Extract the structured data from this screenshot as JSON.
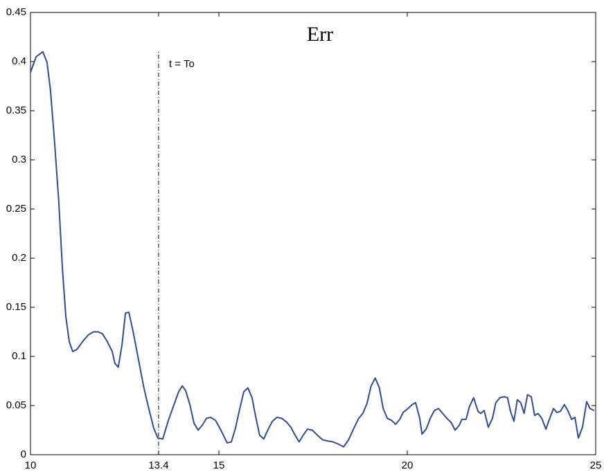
{
  "chart_data": {
    "type": "line",
    "title": "Err",
    "annotation": {
      "x": 13.4,
      "text": "t = To"
    },
    "x": [
      10,
      10.15,
      10.33,
      10.44,
      10.53,
      10.64,
      10.75,
      10.85,
      10.94,
      11.03,
      11.12,
      11.23,
      11.4,
      11.54,
      11.67,
      11.8,
      11.91,
      12.04,
      12.17,
      12.24,
      12.33,
      12.43,
      12.52,
      12.61,
      12.72,
      12.87,
      13.01,
      13.14,
      13.27,
      13.38,
      13.51,
      13.66,
      13.81,
      13.93,
      14.03,
      14.12,
      14.23,
      14.34,
      14.45,
      14.56,
      14.67,
      14.78,
      14.91,
      15.04,
      15.13,
      15.22,
      15.33,
      15.44,
      15.55,
      15.66,
      15.77,
      15.88,
      15.97,
      16.08,
      16.19,
      16.31,
      16.42,
      16.54,
      16.67,
      16.8,
      16.91,
      17.02,
      17.13,
      17.24,
      17.35,
      17.48,
      17.61,
      17.76,
      17.89,
      18.03,
      18.16,
      18.31,
      18.44,
      18.57,
      18.71,
      18.82,
      18.93,
      19.04,
      19.15,
      19.26,
      19.36,
      19.47,
      19.58,
      19.69,
      19.8,
      19.89,
      20.02,
      20.13,
      20.22,
      20.33,
      20.39,
      20.5,
      20.61,
      20.72,
      20.83,
      20.94,
      21.05,
      21.16,
      21.27,
      21.38,
      21.45,
      21.56,
      21.65,
      21.76,
      21.88,
      21.95,
      22.04,
      22.15,
      22.26,
      22.35,
      22.46,
      22.57,
      22.66,
      22.74,
      22.83,
      22.92,
      23.01,
      23.1,
      23.19,
      23.29,
      23.38,
      23.47,
      23.57,
      23.68,
      23.77,
      23.88,
      23.97,
      24.06,
      24.17,
      24.26,
      24.36,
      24.45,
      24.54,
      24.65,
      24.76,
      24.85,
      24.96
    ],
    "values": [
      0.389,
      0.405,
      0.41,
      0.399,
      0.371,
      0.318,
      0.258,
      0.188,
      0.14,
      0.115,
      0.105,
      0.107,
      0.116,
      0.122,
      0.125,
      0.125,
      0.123,
      0.115,
      0.105,
      0.093,
      0.089,
      0.112,
      0.144,
      0.145,
      0.126,
      0.096,
      0.068,
      0.047,
      0.027,
      0.017,
      0.016,
      0.035,
      0.051,
      0.064,
      0.07,
      0.065,
      0.051,
      0.032,
      0.025,
      0.03,
      0.037,
      0.038,
      0.035,
      0.026,
      0.019,
      0.012,
      0.013,
      0.027,
      0.046,
      0.064,
      0.068,
      0.058,
      0.04,
      0.02,
      0.016,
      0.026,
      0.034,
      0.038,
      0.037,
      0.033,
      0.028,
      0.02,
      0.013,
      0.02,
      0.026,
      0.025,
      0.02,
      0.015,
      0.014,
      0.013,
      0.011,
      0.008,
      0.015,
      0.026,
      0.037,
      0.042,
      0.052,
      0.07,
      0.078,
      0.068,
      0.047,
      0.037,
      0.035,
      0.031,
      0.036,
      0.043,
      0.047,
      0.051,
      0.053,
      0.037,
      0.021,
      0.026,
      0.037,
      0.045,
      0.047,
      0.042,
      0.037,
      0.033,
      0.025,
      0.03,
      0.036,
      0.036,
      0.049,
      0.058,
      0.044,
      0.042,
      0.045,
      0.028,
      0.037,
      0.053,
      0.058,
      0.059,
      0.058,
      0.044,
      0.034,
      0.056,
      0.053,
      0.042,
      0.061,
      0.059,
      0.04,
      0.042,
      0.037,
      0.026,
      0.036,
      0.047,
      0.043,
      0.044,
      0.051,
      0.045,
      0.036,
      0.038,
      0.017,
      0.028,
      0.054,
      0.047,
      0.045
    ],
    "color": "#2e4a9a",
    "xlim": [
      10,
      25
    ],
    "xticks": [
      10,
      13.4,
      15,
      20,
      25
    ],
    "ylim": [
      0,
      0.45
    ],
    "yticks": [
      0,
      0.05,
      0.1,
      0.15,
      0.2,
      0.25,
      0.3,
      0.35,
      0.4,
      0.45
    ]
  }
}
